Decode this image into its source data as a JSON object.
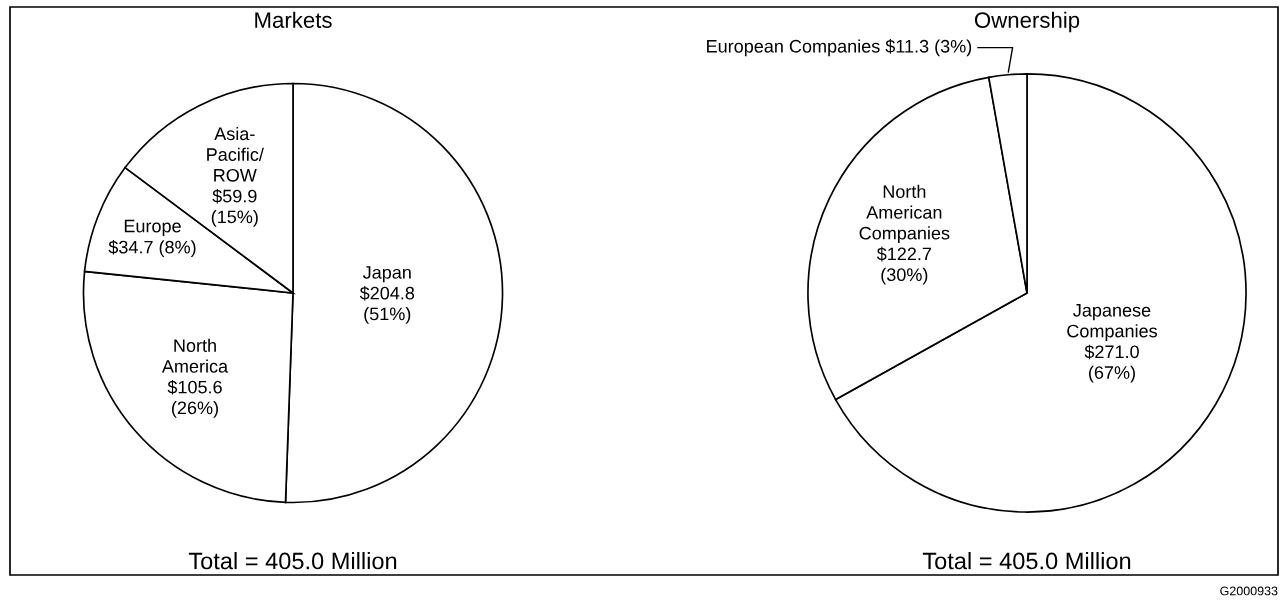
{
  "chart_data": [
    {
      "type": "pie",
      "title": "Markets",
      "categories": [
        "Japan",
        "North\nAmerica",
        "Europe",
        "Asia-\nPacific/\nROW"
      ],
      "values": [
        204.8,
        105.6,
        34.7,
        59.9
      ],
      "value_labels": [
        "$204.8\n(51%)",
        "$105.6\n(26%)",
        "$34.7 (8%)",
        "$59.9\n(15%)"
      ],
      "colors": [
        "#ffffff",
        "#ffffff",
        "#ffffff",
        "#ffffff"
      ],
      "annotations": [
        "Total = 405.0 Million"
      ]
    },
    {
      "type": "pie",
      "title": "Ownership",
      "categories": [
        "Japanese\nCompanies",
        "North\nAmerican\nCompanies",
        "European Companies"
      ],
      "values": [
        271.0,
        122.7,
        11.3
      ],
      "value_labels": [
        "$271.0\n(67%)",
        "$122.7\n(30%)",
        "$11.3 (3%)"
      ],
      "colors": [
        "#ffffff",
        "#ffffff",
        "#ffffff"
      ],
      "annotations": [
        "Total = 405.0 Million",
        "G2000933"
      ]
    }
  ]
}
